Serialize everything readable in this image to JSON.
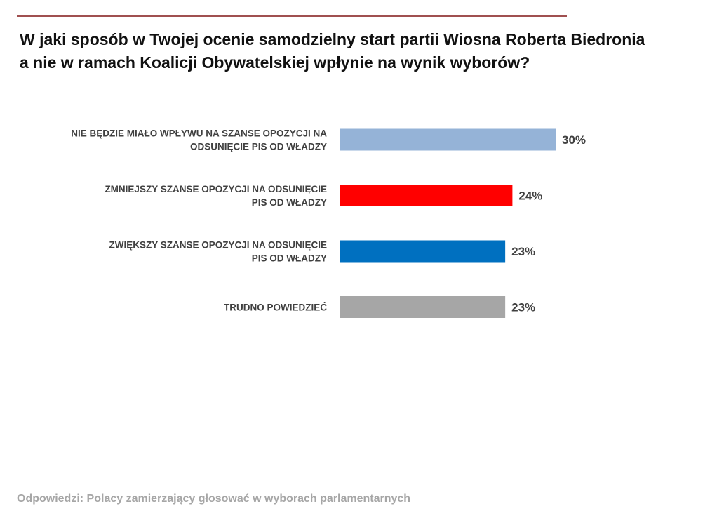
{
  "title": "W jaki sposób w Twojej ocenie samodzielny start partii Wiosna Roberta Biedronia\na nie w ramach  Koalicji Obywatelskiej wpłynie na wynik wyborów?",
  "footnote": "Odpowiedzi: Polacy zamierzający głosować w wyborach parlamentarnych",
  "chart_data": {
    "type": "bar",
    "orientation": "horizontal",
    "title": "W jaki sposób w Twojej ocenie samodzielny start partii Wiosna Roberta Biedronia a nie w ramach  Koalicji Obywatelskiej wpłynie na wynik wyborów?",
    "categories": [
      [
        "NIE BĘDZIE MIAŁO WPŁYWU NA SZANSE OPOZYCJI NA",
        "ODSUNIĘCIE PIS OD WŁADZY"
      ],
      [
        "ZMNIEJSZY SZANSE OPOZYCJI NA ODSUNIĘCIE",
        "PIS OD WŁADZY"
      ],
      [
        "ZWIĘKSZY SZANSE OPOZYCJI NA ODSUNIĘCIE",
        "PIS OD WŁADZY"
      ],
      [
        "TRUDNO POWIEDZIEĆ"
      ]
    ],
    "values": [
      30,
      24,
      23,
      23
    ],
    "value_labels": [
      "30%",
      "24%",
      "23%",
      "23%"
    ],
    "colors": [
      "#95b3d7",
      "#ff0000",
      "#0070c0",
      "#a6a6a6"
    ],
    "unit": "%",
    "xlim": [
      0,
      30
    ],
    "grid": false,
    "legend": "none"
  }
}
